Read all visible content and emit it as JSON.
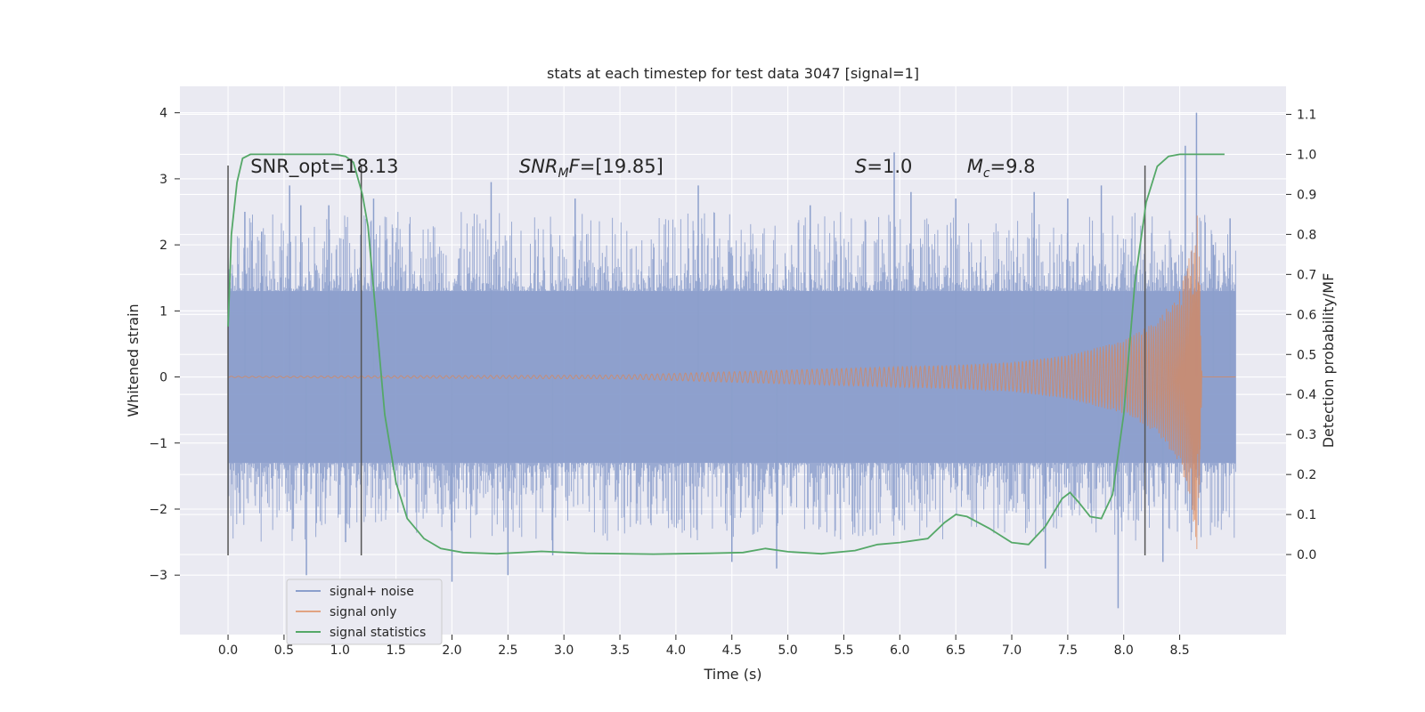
{
  "chart_data": {
    "type": "line",
    "title": "stats at each timestep for test data 3047 [signal=1]",
    "xlabel": "Time (s)",
    "ylabel_left": "Whitened strain",
    "ylabel_right": "Detection probability/MF",
    "xlim": [
      -0.43,
      9.45
    ],
    "ylim_left": [
      -3.9,
      4.4
    ],
    "ylim_right": [
      -0.2,
      1.17
    ],
    "x_ticks": [
      "0.0",
      "0.5",
      "1.0",
      "1.5",
      "2.0",
      "2.5",
      "3.0",
      "3.5",
      "4.0",
      "4.5",
      "5.0",
      "5.5",
      "6.0",
      "6.5",
      "7.0",
      "7.5",
      "8.0",
      "8.5"
    ],
    "y_left_ticks": [
      "−3",
      "−2",
      "−1",
      "0",
      "1",
      "2",
      "3",
      "4"
    ],
    "y_right_ticks": [
      "0.0",
      "0.1",
      "0.2",
      "0.3",
      "0.4",
      "0.5",
      "0.6",
      "0.7",
      "0.8",
      "0.9",
      "1.0",
      "1.1"
    ],
    "grid": true,
    "legend_position": "lower-left",
    "annotations": [
      {
        "id": "snr-opt",
        "text": "SNR_opt=18.13",
        "x": 0.2,
        "y": 3.2
      },
      {
        "id": "snr-mf",
        "text": "SNR_MF=[19.85]",
        "x": 2.6,
        "y": 3.2
      },
      {
        "id": "s",
        "text": "S=1.0",
        "x": 5.6,
        "y": 3.2
      },
      {
        "id": "mc",
        "text": "M_c=9.8",
        "x": 6.6,
        "y": 3.2
      }
    ],
    "vlines": [
      0.0,
      1.19,
      8.19
    ],
    "vline_range_left": [
      -2.7,
      3.2
    ],
    "series": [
      {
        "name": "signal+ noise",
        "color": "#8c9fcc",
        "axis": "left",
        "x_range": [
          0.0,
          9.0
        ],
        "band_level": 1.3,
        "spikes": [
          {
            "x": 0.15,
            "y": 2.5
          },
          {
            "x": 0.3,
            "y": 2.2
          },
          {
            "x": 0.55,
            "y": 2.9
          },
          {
            "x": 0.65,
            "y": 2.6
          },
          {
            "x": 0.7,
            "y": -3.0
          },
          {
            "x": 0.9,
            "y": 2.6
          },
          {
            "x": 1.05,
            "y": -2.5
          },
          {
            "x": 1.3,
            "y": 2.7
          },
          {
            "x": 2.0,
            "y": -3.1
          },
          {
            "x": 2.35,
            "y": 2.95
          },
          {
            "x": 2.5,
            "y": -3.0
          },
          {
            "x": 2.9,
            "y": -2.7
          },
          {
            "x": 3.1,
            "y": 2.7
          },
          {
            "x": 4.2,
            "y": 2.9
          },
          {
            "x": 4.5,
            "y": -2.8
          },
          {
            "x": 4.9,
            "y": -2.9
          },
          {
            "x": 5.2,
            "y": 2.6
          },
          {
            "x": 5.95,
            "y": 3.4
          },
          {
            "x": 6.1,
            "y": 2.8
          },
          {
            "x": 6.5,
            "y": 2.7
          },
          {
            "x": 7.2,
            "y": 2.8
          },
          {
            "x": 7.3,
            "y": -2.9
          },
          {
            "x": 7.5,
            "y": 2.7
          },
          {
            "x": 7.8,
            "y": 2.9
          },
          {
            "x": 7.95,
            "y": -3.5
          },
          {
            "x": 8.35,
            "y": -2.8
          },
          {
            "x": 8.55,
            "y": 3.5
          },
          {
            "x": 8.65,
            "y": 4.0
          },
          {
            "x": 8.8,
            "y": 2.0
          },
          {
            "x": 8.95,
            "y": 2.4
          }
        ]
      },
      {
        "name": "signal only",
        "color": "#dd8452",
        "axis": "left",
        "x_range": [
          0.0,
          9.0
        ],
        "envelope": [
          [
            0.0,
            0.01
          ],
          [
            3.5,
            0.03
          ],
          [
            4.5,
            0.08
          ],
          [
            5.5,
            0.13
          ],
          [
            6.5,
            0.18
          ],
          [
            7.0,
            0.22
          ],
          [
            7.5,
            0.33
          ],
          [
            8.0,
            0.55
          ],
          [
            8.3,
            0.85
          ],
          [
            8.5,
            1.3
          ],
          [
            8.6,
            1.9
          ],
          [
            8.66,
            2.8
          ],
          [
            8.7,
            0.0
          ]
        ]
      },
      {
        "name": "signal statistics",
        "color": "#55a868",
        "axis": "right",
        "x": [
          0.0,
          0.03,
          0.08,
          0.13,
          0.2,
          0.3,
          0.5,
          0.8,
          0.95,
          1.05,
          1.12,
          1.2,
          1.25,
          1.32,
          1.4,
          1.5,
          1.6,
          1.75,
          1.9,
          2.1,
          2.4,
          2.8,
          3.2,
          3.8,
          4.3,
          4.6,
          4.8,
          5.0,
          5.3,
          5.6,
          5.8,
          6.0,
          6.25,
          6.4,
          6.5,
          6.6,
          6.8,
          7.0,
          7.15,
          7.3,
          7.45,
          7.52,
          7.6,
          7.7,
          7.8,
          7.9,
          8.0,
          8.1,
          8.2,
          8.3,
          8.4,
          8.5,
          8.6,
          8.9
        ],
        "y": [
          0.57,
          0.8,
          0.93,
          0.99,
          1.0,
          1.0,
          1.0,
          1.0,
          1.0,
          0.995,
          0.98,
          0.9,
          0.82,
          0.6,
          0.35,
          0.18,
          0.09,
          0.04,
          0.015,
          0.005,
          0.002,
          0.008,
          0.003,
          0.001,
          0.003,
          0.005,
          0.015,
          0.007,
          0.002,
          0.01,
          0.025,
          0.03,
          0.04,
          0.08,
          0.1,
          0.095,
          0.065,
          0.03,
          0.025,
          0.07,
          0.14,
          0.155,
          0.13,
          0.095,
          0.09,
          0.15,
          0.35,
          0.68,
          0.88,
          0.97,
          0.995,
          1.0,
          1.0,
          1.0
        ]
      }
    ]
  }
}
